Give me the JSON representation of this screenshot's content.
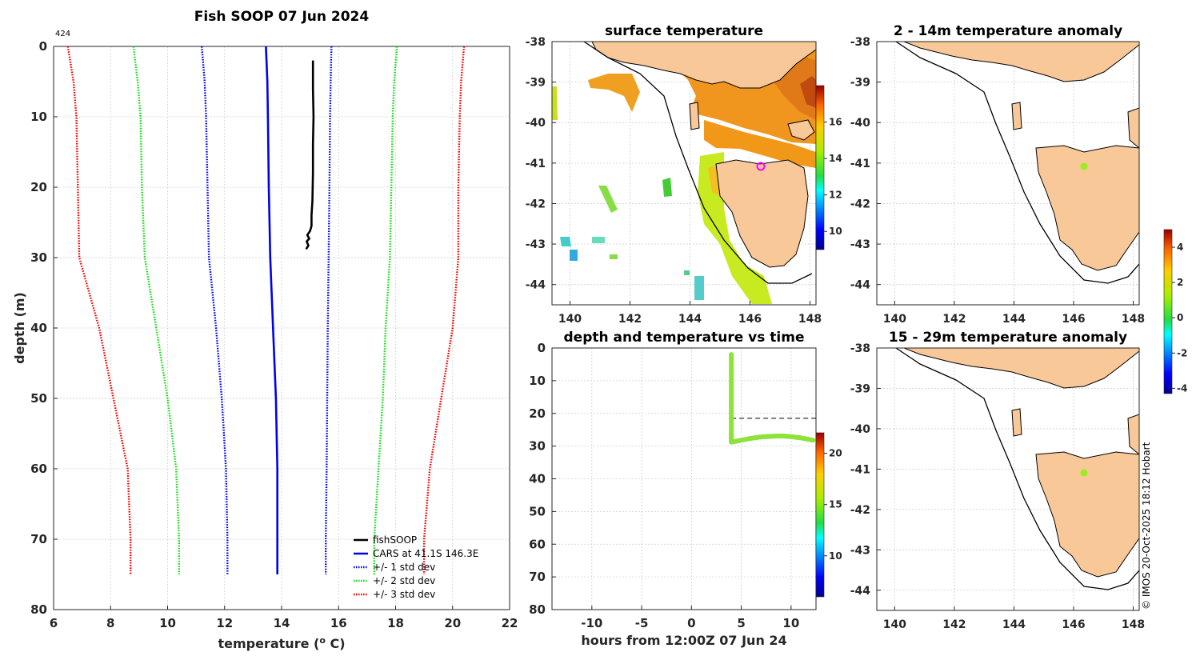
{
  "chart_data": [
    {
      "type": "line",
      "title": "Fish SOOP 07 Jun 2024",
      "corner_label": "424",
      "xlabel": "temperature (",
      "xlabel_sup": "o",
      "xlabel_tail": " C)",
      "ylabel": "depth (m)",
      "xlim": [
        6,
        22
      ],
      "ylim": [
        0,
        80
      ],
      "y_reversed": true,
      "grid": true,
      "legend_position": "bottom-right",
      "xticks": [
        "6",
        "8",
        "10",
        "12",
        "14",
        "16",
        "18",
        "20",
        "22"
      ],
      "yticks": [
        "0",
        "10",
        "20",
        "30",
        "40",
        "50",
        "60",
        "70",
        "80"
      ],
      "series": [
        {
          "name": "fishSOOP",
          "color": "#000000",
          "style": "solid",
          "points": [
            [
              15.1,
              2
            ],
            [
              15.1,
              6
            ],
            [
              15.12,
              10
            ],
            [
              15.1,
              14
            ],
            [
              15.1,
              18
            ],
            [
              15.08,
              22
            ],
            [
              15.05,
              24
            ],
            [
              15.05,
              25.5
            ],
            [
              15.0,
              26.2
            ],
            [
              14.9,
              26.8
            ],
            [
              14.97,
              27.3
            ],
            [
              14.88,
              27.7
            ],
            [
              14.94,
              28.3
            ],
            [
              14.86,
              28.8
            ]
          ]
        },
        {
          "name": "CARS at 41.1S 146.3E",
          "color": "#0000ee",
          "style": "solid",
          "points": [
            [
              13.45,
              0
            ],
            [
              13.5,
              5
            ],
            [
              13.52,
              10
            ],
            [
              13.55,
              20
            ],
            [
              13.6,
              30
            ],
            [
              13.7,
              40
            ],
            [
              13.8,
              50
            ],
            [
              13.85,
              60
            ],
            [
              13.85,
              70
            ],
            [
              13.85,
              75
            ]
          ]
        },
        {
          "name": "+/- 1 std dev",
          "color": "#0000ee",
          "style": "dotted",
          "points": [
            [
              11.2,
              0
            ],
            [
              11.3,
              5
            ],
            [
              11.35,
              10
            ],
            [
              11.4,
              20
            ],
            [
              11.45,
              30
            ],
            [
              11.7,
              40
            ],
            [
              11.9,
              50
            ],
            [
              12.05,
              60
            ],
            [
              12.1,
              70
            ],
            [
              12.1,
              75
            ]
          ]
        },
        {
          "name": "",
          "color": "#0000ee",
          "style": "dotted",
          "points": [
            [
              15.75,
              0
            ],
            [
              15.72,
              5
            ],
            [
              15.7,
              10
            ],
            [
              15.68,
              20
            ],
            [
              15.65,
              30
            ],
            [
              15.62,
              40
            ],
            [
              15.6,
              50
            ],
            [
              15.58,
              60
            ],
            [
              15.55,
              70
            ],
            [
              15.55,
              75
            ]
          ]
        },
        {
          "name": "+/- 2 std dev",
          "color": "#11dd11",
          "style": "dotted",
          "points": [
            [
              8.8,
              0
            ],
            [
              8.95,
              5
            ],
            [
              9.05,
              10
            ],
            [
              9.1,
              20
            ],
            [
              9.2,
              30
            ],
            [
              9.6,
              40
            ],
            [
              10.0,
              50
            ],
            [
              10.3,
              60
            ],
            [
              10.4,
              70
            ],
            [
              10.4,
              75
            ]
          ]
        },
        {
          "name": "",
          "color": "#11dd11",
          "style": "dotted",
          "points": [
            [
              18.05,
              0
            ],
            [
              17.95,
              5
            ],
            [
              17.9,
              10
            ],
            [
              17.85,
              20
            ],
            [
              17.8,
              30
            ],
            [
              17.65,
              40
            ],
            [
              17.55,
              50
            ],
            [
              17.4,
              60
            ],
            [
              17.25,
              70
            ],
            [
              17.25,
              75
            ]
          ]
        },
        {
          "name": "+/- 3 std dev",
          "color": "#ee0000",
          "style": "dotted",
          "points": [
            [
              6.5,
              0
            ],
            [
              6.7,
              5
            ],
            [
              6.8,
              10
            ],
            [
              6.85,
              20
            ],
            [
              6.9,
              30
            ],
            [
              7.6,
              40
            ],
            [
              8.1,
              50
            ],
            [
              8.6,
              60
            ],
            [
              8.7,
              70
            ],
            [
              8.7,
              75
            ]
          ]
        },
        {
          "name": "",
          "color": "#ee0000",
          "style": "dotted",
          "points": [
            [
              20.4,
              0
            ],
            [
              20.3,
              5
            ],
            [
              20.25,
              10
            ],
            [
              20.2,
              20
            ],
            [
              20.2,
              30
            ],
            [
              20.0,
              40
            ],
            [
              19.6,
              50
            ],
            [
              19.2,
              60
            ],
            [
              19.0,
              70
            ],
            [
              19.0,
              75
            ]
          ]
        }
      ]
    },
    {
      "type": "heatmap",
      "title": "surface temperature",
      "xlim": [
        139.4,
        148.2
      ],
      "ylim": [
        -44.5,
        -38
      ],
      "xticks": [
        "140",
        "142",
        "144",
        "146",
        "148"
      ],
      "yticks": [
        "-38",
        "-39",
        "-40",
        "-41",
        "-42",
        "-43",
        "-44"
      ],
      "colorbar": {
        "range": [
          9,
          18
        ],
        "ticks": [
          "10",
          "12",
          "14",
          "16"
        ]
      },
      "marker": {
        "lon": 146.3,
        "lat": -41.1,
        "color": "#ff00ff"
      }
    },
    {
      "type": "scatter",
      "title": "depth and temperature vs time",
      "xlabel": "hours from 12:00Z 07 Jun 24",
      "xlim": [
        -14,
        12.5
      ],
      "ylim": [
        0,
        80
      ],
      "y_reversed": true,
      "xticks": [
        "-10",
        "-5",
        "0",
        "5",
        "10"
      ],
      "yticks": [
        "0",
        "10",
        "20",
        "30",
        "40",
        "50",
        "60",
        "70",
        "80"
      ],
      "reference_depth": 21.5,
      "colorbar": {
        "range": [
          6,
          22
        ],
        "ticks": [
          "10",
          "15",
          "20"
        ]
      },
      "points": [
        [
          4,
          2
        ],
        [
          4,
          6
        ],
        [
          4,
          10
        ],
        [
          4,
          14
        ],
        [
          4,
          18
        ],
        [
          4,
          22
        ],
        [
          4,
          26
        ],
        [
          4,
          28.8
        ],
        [
          5,
          28.2
        ],
        [
          6,
          27.6
        ],
        [
          7,
          27.2
        ],
        [
          8,
          27.0
        ],
        [
          9,
          26.9
        ],
        [
          10,
          27.1
        ],
        [
          11,
          27.5
        ],
        [
          12.2,
          28.2
        ]
      ]
    },
    {
      "type": "heatmap",
      "title": "2 - 14m temperature anomaly",
      "xlim": [
        139.4,
        148.2
      ],
      "ylim": [
        -44.5,
        -38
      ],
      "xticks": [
        "140",
        "142",
        "144",
        "146",
        "148"
      ],
      "yticks": [
        "-38",
        "-39",
        "-40",
        "-41",
        "-42",
        "-43",
        "-44"
      ],
      "marker": {
        "lon": 146.3,
        "lat": -41.1,
        "color": "#99ee22"
      }
    },
    {
      "type": "heatmap",
      "title": "15 - 29m temperature anomaly",
      "xlim": [
        139.4,
        148.2
      ],
      "ylim": [
        -44.5,
        -38
      ],
      "xticks": [
        "140",
        "142",
        "144",
        "146",
        "148"
      ],
      "yticks": [
        "-38",
        "-39",
        "-40",
        "-41",
        "-42",
        "-43",
        "-44"
      ],
      "colorbar": {
        "range": [
          -4.3,
          5
        ],
        "ticks": [
          "4",
          "2",
          "0",
          "-2",
          "-4"
        ]
      },
      "marker": {
        "lon": 146.3,
        "lat": -41.1,
        "color": "#99ee22"
      }
    }
  ],
  "credit": "© IMOS 20-Oct-2025 18:12 Hobart",
  "colors": {
    "land": "#f8c898",
    "shelf": "#000000"
  }
}
